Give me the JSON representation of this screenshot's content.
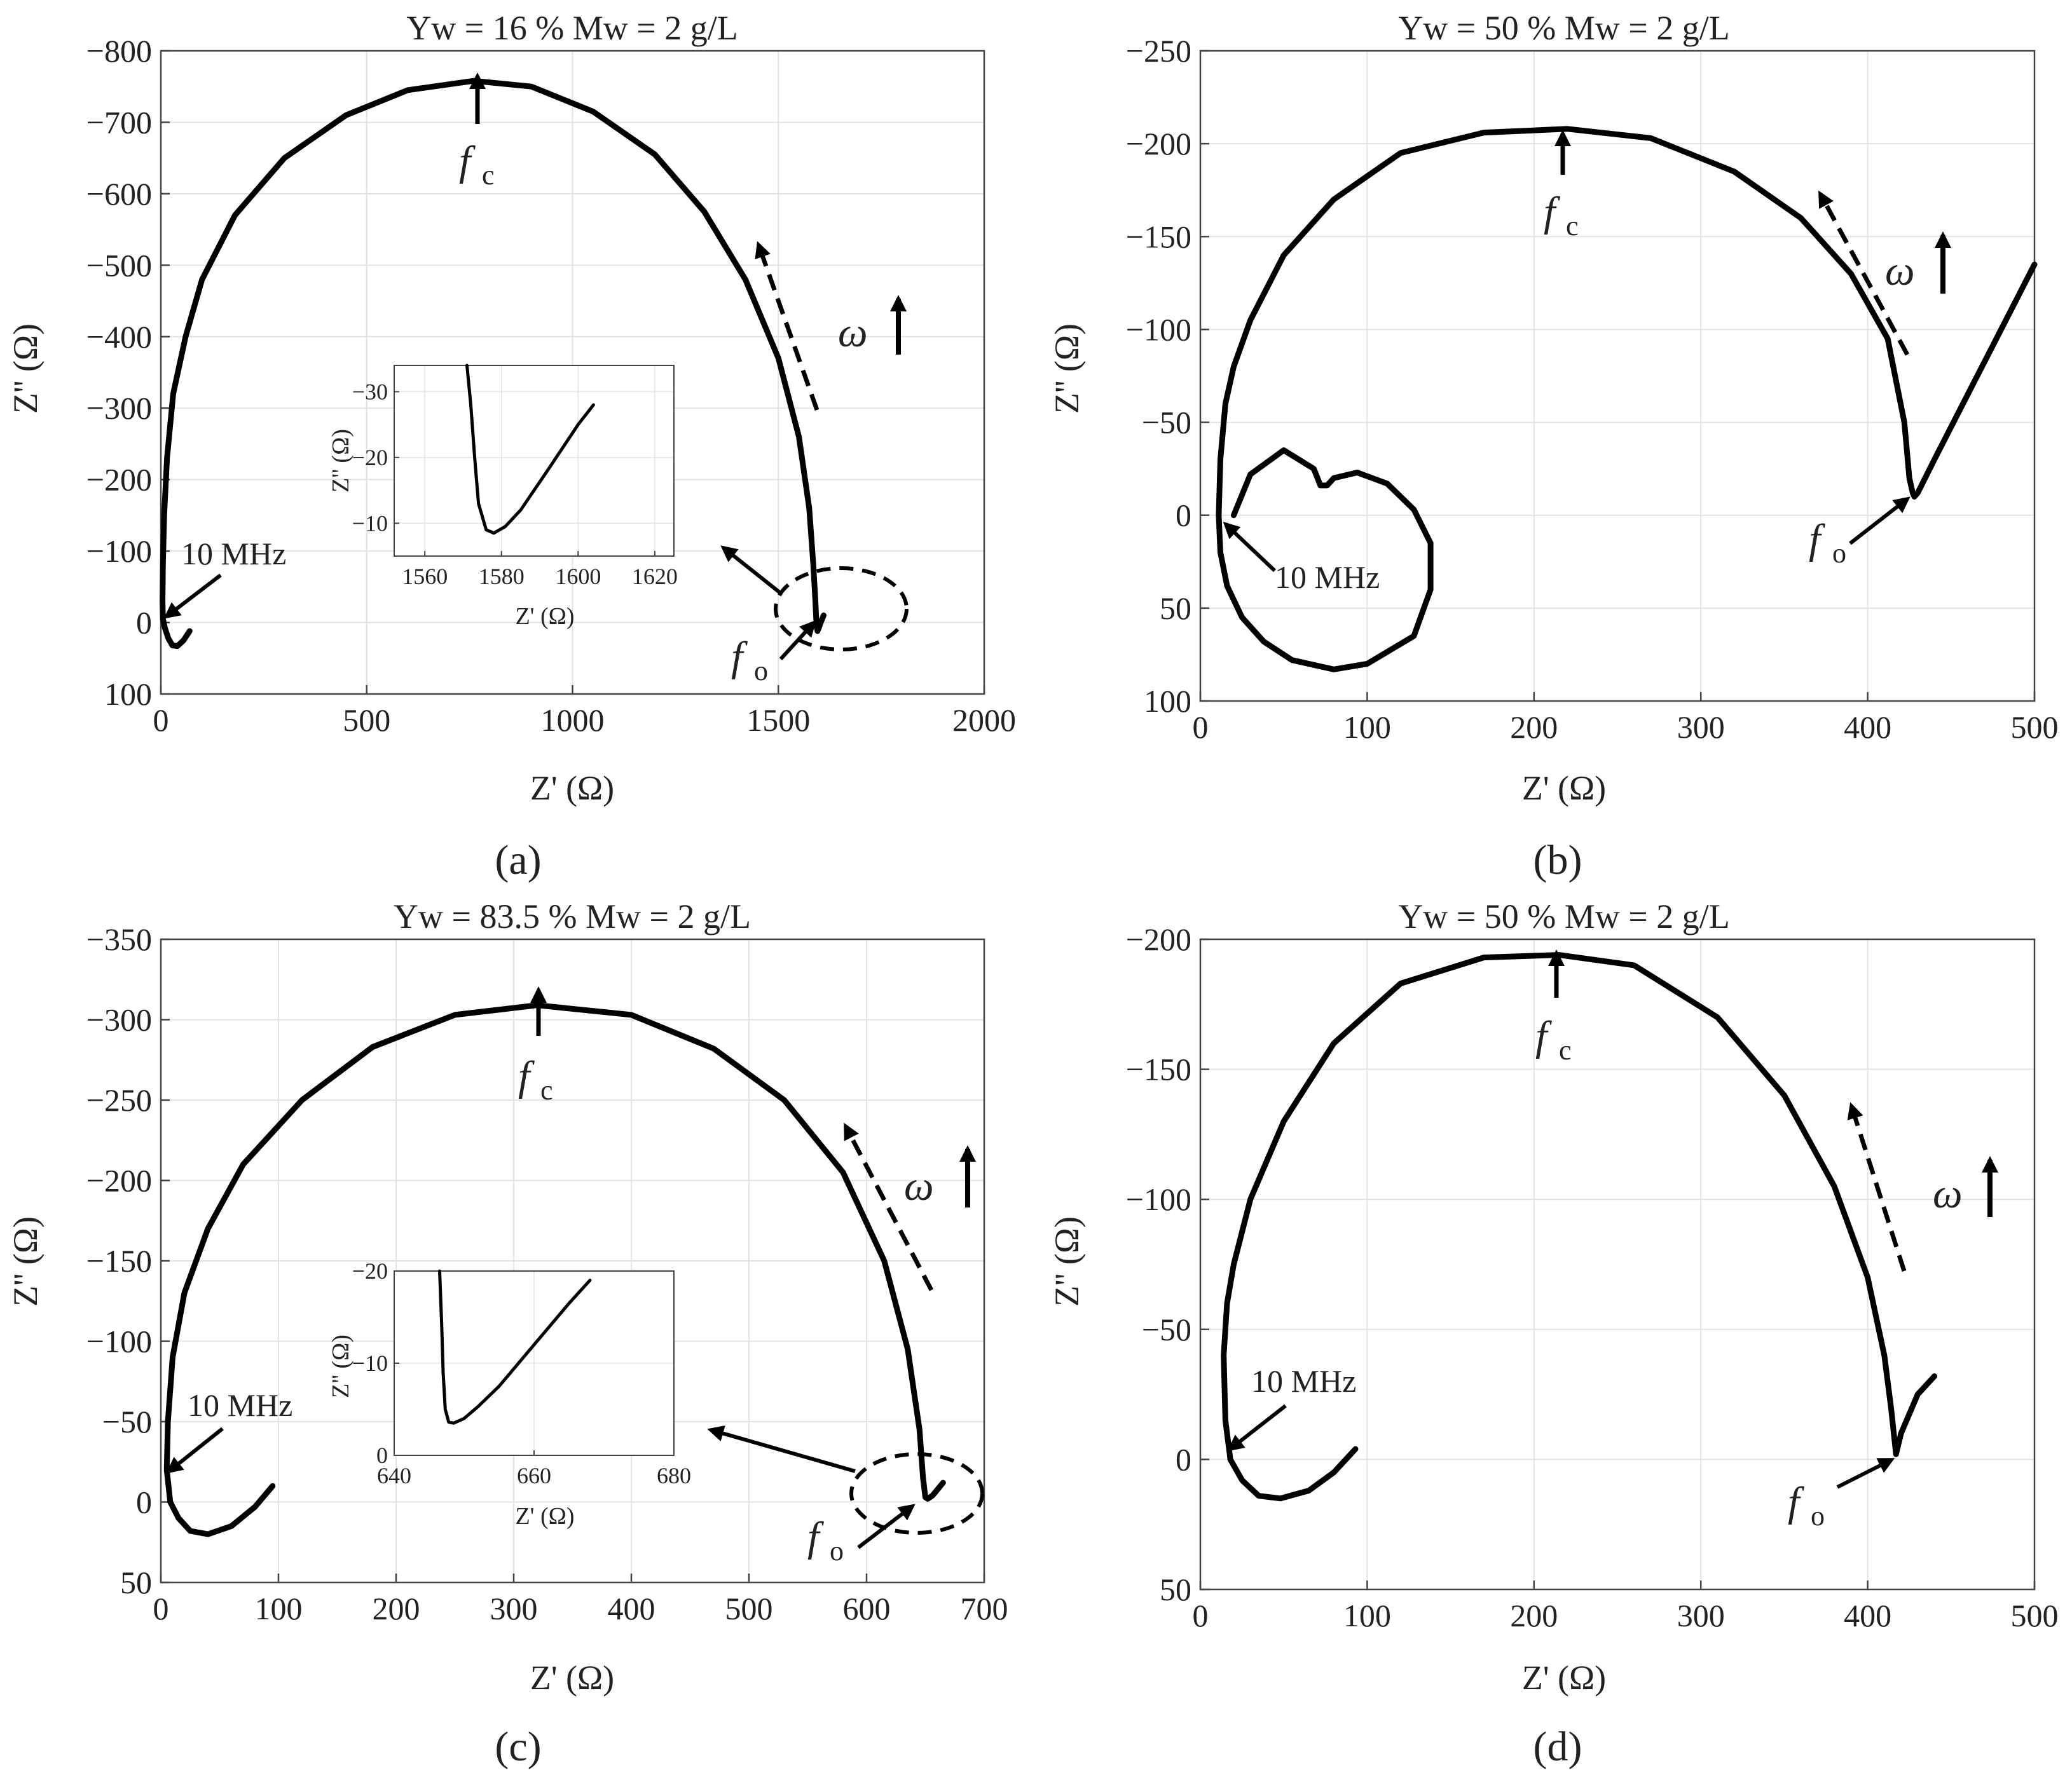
{
  "figure": {
    "panel_labels": [
      "(a)",
      "(b)",
      "(c)",
      "(d)"
    ]
  },
  "chart_data": [
    {
      "type": "line",
      "panel": "(a)",
      "title": "Yw = 16 %  Mw = 2 g/L",
      "xlabel": "Z' (Ω)",
      "ylabel": "Z'' (Ω)",
      "xlim": [
        0,
        2000
      ],
      "ylim": [
        100,
        -800
      ],
      "xticks": [
        "0",
        "500",
        "1000",
        "1500",
        "2000"
      ],
      "yticks": [
        "−800",
        "−700",
        "−600",
        "−500",
        "−400",
        "−300",
        "−200",
        "−100",
        "0",
        "100"
      ],
      "grid": true,
      "series": [
        {
          "x": [
            70,
            55,
            40,
            28,
            18,
            10,
            5,
            4,
            5,
            8,
            15,
            30,
            60,
            100,
            180,
            300,
            450,
            600,
            760,
            900,
            1050,
            1200,
            1320,
            1420,
            1500,
            1550,
            1575,
            1585,
            1590,
            1592,
            1593,
            1595,
            1598,
            1603,
            1610
          ],
          "y": [
            12,
            25,
            33,
            32,
            22,
            8,
            -5,
            -30,
            -80,
            -150,
            -230,
            -320,
            -400,
            -480,
            -570,
            -650,
            -710,
            -745,
            -758,
            -750,
            -715,
            -655,
            -575,
            -480,
            -370,
            -260,
            -160,
            -80,
            -30,
            -5,
            5,
            12,
            8,
            0,
            -10
          ]
        }
      ],
      "annotations": [
        {
          "text": "10 MHz"
        },
        {
          "text": "f",
          "subscript": "c"
        },
        {
          "text": "f",
          "subscript": "o"
        },
        {
          "text": "ω"
        }
      ],
      "inset": {
        "xlabel": "Z' (Ω)",
        "ylabel": "Z'' (Ω)",
        "xlim": [
          1552,
          1625
        ],
        "ylim": [
          -5,
          -34
        ],
        "xticks": [
          "1560",
          "1580",
          "1600",
          "1620"
        ],
        "yticks": [
          "−30",
          "−20",
          "−10"
        ],
        "x": [
          1571,
          1572,
          1573,
          1574,
          1576,
          1578,
          1581,
          1585,
          1592,
          1600,
          1604
        ],
        "y": [
          -34,
          -28,
          -20,
          -13,
          -9,
          -8.5,
          -9.5,
          -12,
          -18,
          -25,
          -28
        ]
      }
    },
    {
      "type": "line",
      "panel": "(b)",
      "title": "Yw = 50 %  Mw = 2 g/L",
      "xlabel": "Z' (Ω)",
      "ylabel": "Z'' (Ω)",
      "xlim": [
        0,
        500
      ],
      "ylim": [
        100,
        -250
      ],
      "xticks": [
        "0",
        "100",
        "200",
        "300",
        "400",
        "500"
      ],
      "yticks": [
        "−250",
        "−200",
        "−150",
        "−100",
        "−50",
        "0",
        "50",
        "100"
      ],
      "grid": true,
      "series": [
        {
          "x": [
            20,
            30,
            50,
            68,
            72,
            76,
            80,
            94,
            112,
            128,
            138,
            138,
            128,
            100,
            80,
            55,
            38,
            25,
            16,
            12,
            11,
            12,
            15,
            20,
            30,
            50,
            80,
            120,
            170,
            220,
            270,
            320,
            360,
            390,
            412,
            422,
            425,
            427,
            428,
            430,
            440,
            460,
            480,
            500
          ],
          "y": [
            0,
            -22,
            -35,
            -25,
            -16,
            -16,
            -20,
            -23,
            -17,
            -3,
            15,
            40,
            65,
            80,
            83,
            78,
            68,
            55,
            38,
            20,
            0,
            -30,
            -60,
            -80,
            -105,
            -140,
            -170,
            -195,
            -206,
            -208,
            -203,
            -185,
            -160,
            -130,
            -95,
            -50,
            -20,
            -12,
            -10,
            -12,
            -30,
            -65,
            -100,
            -135
          ]
        }
      ],
      "annotations": [
        {
          "text": "10 MHz"
        },
        {
          "text": "f",
          "subscript": "c"
        },
        {
          "text": "f",
          "subscript": "o"
        },
        {
          "text": "ω"
        }
      ]
    },
    {
      "type": "line",
      "panel": "(c)",
      "title": "Yw = 83.5 %  Mw = 2 g/L",
      "xlabel": "Z' (Ω)",
      "ylabel": "Z'' (Ω)",
      "xlim": [
        0,
        700
      ],
      "ylim": [
        50,
        -350
      ],
      "xticks": [
        "0",
        "100",
        "200",
        "300",
        "400",
        "500",
        "600",
        "700"
      ],
      "yticks": [
        "−350",
        "−300",
        "−250",
        "−200",
        "−150",
        "−100",
        "−50",
        "0",
        "50"
      ],
      "grid": true,
      "series": [
        {
          "x": [
            95,
            80,
            60,
            40,
            25,
            15,
            8,
            5,
            6,
            10,
            20,
            40,
            70,
            120,
            180,
            250,
            320,
            400,
            470,
            530,
            580,
            615,
            635,
            645,
            648,
            650,
            652,
            656,
            665
          ],
          "y": [
            -10,
            3,
            15,
            20,
            18,
            10,
            0,
            -20,
            -50,
            -90,
            -130,
            -170,
            -210,
            -250,
            -283,
            -303,
            -309,
            -303,
            -282,
            -250,
            -205,
            -150,
            -95,
            -45,
            -15,
            -3,
            -2,
            -4,
            -12
          ]
        }
      ],
      "annotations": [
        {
          "text": "10 MHz"
        },
        {
          "text": "f",
          "subscript": "c"
        },
        {
          "text": "f",
          "subscript": "o"
        },
        {
          "text": "ω"
        }
      ],
      "inset": {
        "xlabel": "Z' (Ω)",
        "ylabel": "Z'' (Ω)",
        "xlim": [
          640,
          680
        ],
        "ylim": [
          0,
          -20
        ],
        "xticks": [
          "640",
          "660",
          "680"
        ],
        "yticks": [
          "−20",
          "−10",
          "0"
        ],
        "x": [
          646.5,
          646.8,
          647,
          647.3,
          647.8,
          648.5,
          650,
          652,
          655,
          660,
          665,
          668
        ],
        "y": [
          -20,
          -14,
          -9,
          -5,
          -3.6,
          -3.5,
          -4,
          -5.3,
          -7.5,
          -12,
          -16.5,
          -19
        ]
      }
    },
    {
      "type": "line",
      "panel": "(d)",
      "title": "Yw = 50 %  Mw = 2 g/L",
      "xlabel": "Z' (Ω)",
      "ylabel": "Z'' (Ω)",
      "xlim": [
        0,
        500
      ],
      "ylim": [
        50,
        -200
      ],
      "xticks": [
        "0",
        "100",
        "200",
        "300",
        "400",
        "500"
      ],
      "yticks": [
        "−200",
        "−150",
        "−100",
        "−50",
        "0",
        "50"
      ],
      "grid": true,
      "series": [
        {
          "x": [
            93,
            80,
            65,
            48,
            35,
            25,
            18,
            15,
            14,
            16,
            20,
            30,
            50,
            80,
            120,
            170,
            215,
            260,
            310,
            350,
            380,
            400,
            410,
            414,
            416,
            417,
            420,
            430,
            440
          ],
          "y": [
            -4,
            5,
            12,
            15,
            14,
            8,
            0,
            -15,
            -40,
            -60,
            -75,
            -100,
            -130,
            -160,
            -183,
            -193,
            -194,
            -190,
            -170,
            -140,
            -105,
            -70,
            -40,
            -20,
            -8,
            -2,
            -10,
            -25,
            -32
          ]
        }
      ],
      "annotations": [
        {
          "text": "10 MHz"
        },
        {
          "text": "f",
          "subscript": "c"
        },
        {
          "text": "f",
          "subscript": "o"
        },
        {
          "text": "ω"
        }
      ]
    }
  ]
}
